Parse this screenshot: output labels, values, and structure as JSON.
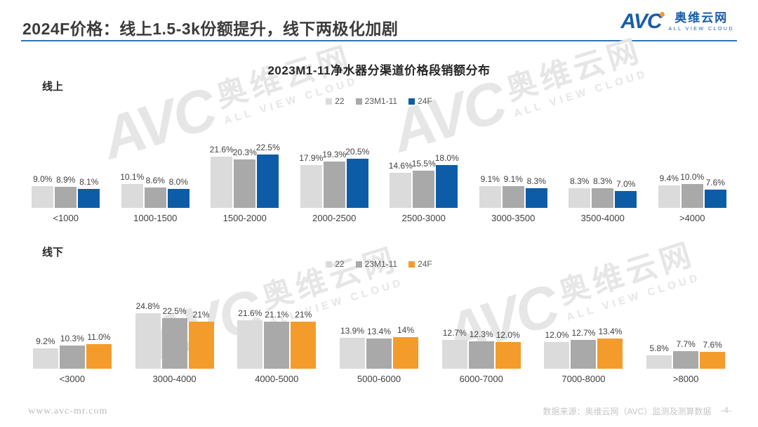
{
  "page": {
    "header_title": "2024F价格：线上1.5-3k份额提升，线下两极化加剧",
    "logo": {
      "text": "AVC",
      "cn": "奥维云网",
      "en": "ALL VIEW CLOUD"
    },
    "footer_left": "www.avc-mr.com",
    "footer_right": "数据来源：奥维云网（AVC）监测及测算数据",
    "page_number": "-4-"
  },
  "chart_title": "2023M1-11净水器分渠道价格段销额分布",
  "watermark": {
    "logo_text": "AVC",
    "cn": "奥维云网",
    "en": "ALL VIEW CLOUD"
  },
  "colors": {
    "accent_blue": "#2E74B5",
    "logo_blue": "#1A5DA8",
    "logo_orange": "#F39C2B",
    "series_22": "#DBDBDB",
    "series_23m1_11": "#A9A9A9",
    "online_24f": "#0D5CA8",
    "offline_24f": "#F39C2B"
  },
  "chart_data": [
    {
      "type": "bar",
      "section_label": "线上",
      "title": "2023M1-11净水器分渠道价格段销额分布",
      "legend_position": "top-center",
      "grid": false,
      "unit": "%",
      "ylim": [
        0,
        25
      ],
      "categories": [
        "<1000",
        "1000-1500",
        "1500-2000",
        "2000-2500",
        "2500-3000",
        "3000-3500",
        "3500-4000",
        ">4000"
      ],
      "series": [
        {
          "name": "22",
          "color": "#DBDBDB",
          "values": [
            9.0,
            10.1,
            21.6,
            17.9,
            14.6,
            9.1,
            8.3,
            9.4
          ],
          "labels": [
            "9.0%",
            "10.1%",
            "21.6%",
            "17.9%",
            "14.6%",
            "9.1%",
            "8.3%",
            "9.4%"
          ]
        },
        {
          "name": "23M1-11",
          "color": "#A9A9A9",
          "values": [
            8.9,
            8.6,
            20.3,
            19.3,
            15.5,
            9.1,
            8.3,
            10.0
          ],
          "labels": [
            "8.9%",
            "8.6%",
            "20.3%",
            "19.3%",
            "15.5%",
            "9.1%",
            "8.3%",
            "10.0%"
          ]
        },
        {
          "name": "24F",
          "color": "#0D5CA8",
          "values": [
            8.1,
            8.0,
            22.5,
            20.5,
            18.0,
            8.3,
            7.0,
            7.6
          ],
          "labels": [
            "8.1%",
            "8.0%",
            "22.5%",
            "20.5%",
            "18.0%",
            "8.3%",
            "7.0%",
            "7.6%"
          ]
        }
      ]
    },
    {
      "type": "bar",
      "section_label": "线下",
      "title": "2023M1-11净水器分渠道价格段销额分布",
      "legend_position": "top-center",
      "grid": false,
      "unit": "%",
      "ylim": [
        0,
        26
      ],
      "categories": [
        "<3000",
        "3000-4000",
        "4000-5000",
        "5000-6000",
        "6000-7000",
        "7000-8000",
        ">8000"
      ],
      "series": [
        {
          "name": "22",
          "color": "#DBDBDB",
          "values": [
            9.2,
            24.8,
            21.6,
            13.9,
            12.7,
            12.0,
            5.8
          ],
          "labels": [
            "9.2%",
            "24.8%",
            "21.6%",
            "13.9%",
            "12.7%",
            "12.0%",
            "5.8%"
          ]
        },
        {
          "name": "23M1-11",
          "color": "#A9A9A9",
          "values": [
            10.3,
            22.5,
            21.1,
            13.4,
            12.3,
            12.7,
            7.7
          ],
          "labels": [
            "10.3%",
            "22.5%",
            "21.1%",
            "13.4%",
            "12.3%",
            "12.7%",
            "7.7%"
          ]
        },
        {
          "name": "24F",
          "color": "#F39C2B",
          "values": [
            11.0,
            21.0,
            21.0,
            14.0,
            12.0,
            13.4,
            7.6
          ],
          "labels": [
            "11.0%",
            "21%",
            "21%",
            "14%",
            "12.0%",
            "13.4%",
            "7.6%"
          ]
        }
      ]
    }
  ]
}
